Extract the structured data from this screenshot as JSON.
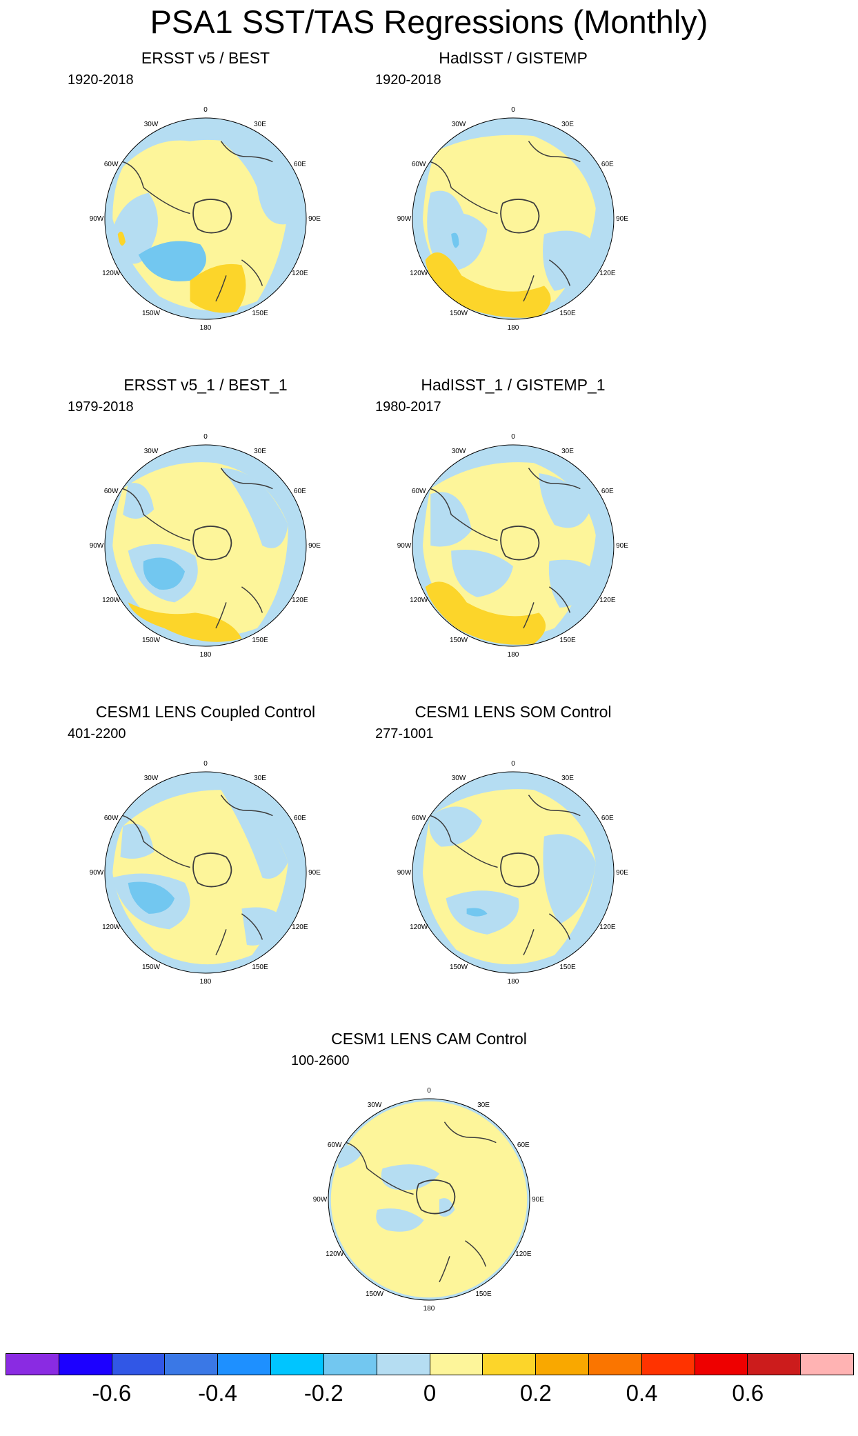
{
  "title": "PSA1 SST/TAS Regressions (Monthly)",
  "longitude_labels": [
    "0",
    "30E",
    "60E",
    "90E",
    "120E",
    "150E",
    "180",
    "150W",
    "120W",
    "90W",
    "60W",
    "30W"
  ],
  "panels": [
    {
      "title": "ERSST v5 / BEST",
      "years": "1920-2018"
    },
    {
      "title": "HadISST / GISTEMP",
      "years": "1920-2018"
    },
    {
      "title": "ERSST v5_1 / BEST_1",
      "years": "1979-2018"
    },
    {
      "title": "HadISST_1 / GISTEMP_1",
      "years": "1980-2017"
    },
    {
      "title": "CESM1 LENS Coupled Control",
      "years": "401-2200"
    },
    {
      "title": "CESM1 LENS SOM Control",
      "years": "277-1001"
    },
    {
      "title": "CESM1 LENS CAM Control",
      "years": "100-2600"
    }
  ],
  "colorbar": {
    "colors": [
      "#8a2be2",
      "#1c00ff",
      "#3157e6",
      "#3a78e6",
      "#1e90ff",
      "#00c5ff",
      "#72c7f0",
      "#b5ddf2",
      "#fdf59a",
      "#fcd52a",
      "#f9a800",
      "#fa7500",
      "#ff3300",
      "#ee0000",
      "#cc1c1c",
      "#ffb3b3"
    ],
    "labels": [
      "-0.6",
      "-0.4",
      "-0.2",
      "0",
      "0.2",
      "0.4",
      "0.6"
    ],
    "label_boundary_index": [
      2,
      4,
      6,
      8,
      10,
      12,
      14
    ]
  },
  "map_colors": {
    "ocean_base": "#b5ddf2",
    "pos_weak": "#fdf59a",
    "pos_mid": "#fcd52a",
    "neg_mid": "#72c7f0",
    "land_outline": "#3d3d3d"
  }
}
